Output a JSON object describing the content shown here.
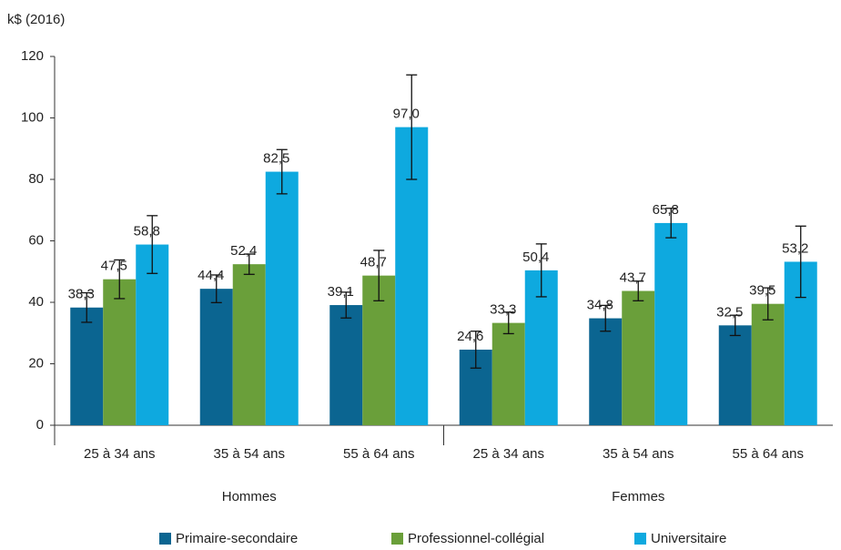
{
  "chart_data": {
    "type": "bar",
    "y_label": "k$ (2016)",
    "categories": [
      "25 à 34 ans",
      "35 à 54 ans",
      "55 à 64 ans",
      "25 à 34 ans",
      "35 à 54 ans",
      "55 à 64 ans"
    ],
    "groups": [
      "Hommes",
      "Femmes"
    ],
    "series": [
      {
        "name": "Primaire-secondaire",
        "color": "#0b6591",
        "values": [
          38.3,
          44.4,
          39.1,
          24.6,
          34.8,
          32.5
        ],
        "value_labels": [
          "38,3",
          "44,4",
          "39,1",
          "24,6",
          "34,8",
          "32,5"
        ],
        "errors": [
          4.8,
          4.5,
          4.2,
          6.0,
          4.2,
          3.3
        ]
      },
      {
        "name": "Professionnel-collégial",
        "color": "#6a9f3a",
        "values": [
          47.5,
          52.4,
          48.7,
          33.3,
          43.7,
          39.5
        ],
        "value_labels": [
          "47,5",
          "52,4",
          "48,7",
          "33,3",
          "43,7",
          "39,5"
        ],
        "errors": [
          6.3,
          3.3,
          8.2,
          3.5,
          3.2,
          5.2
        ]
      },
      {
        "name": "Universitaire",
        "color": "#0ea9df",
        "values": [
          58.8,
          82.5,
          97.0,
          50.4,
          65.8,
          53.2
        ],
        "value_labels": [
          "58,8",
          "82,5",
          "97,0",
          "50,4",
          "65,8",
          "53,2"
        ],
        "errors": [
          9.4,
          7.2,
          17.0,
          8.6,
          4.8,
          11.6
        ]
      }
    ],
    "ylim": [
      0,
      120
    ],
    "yticks": [
      0,
      20,
      40,
      60,
      80,
      100,
      120
    ],
    "grid": false
  }
}
